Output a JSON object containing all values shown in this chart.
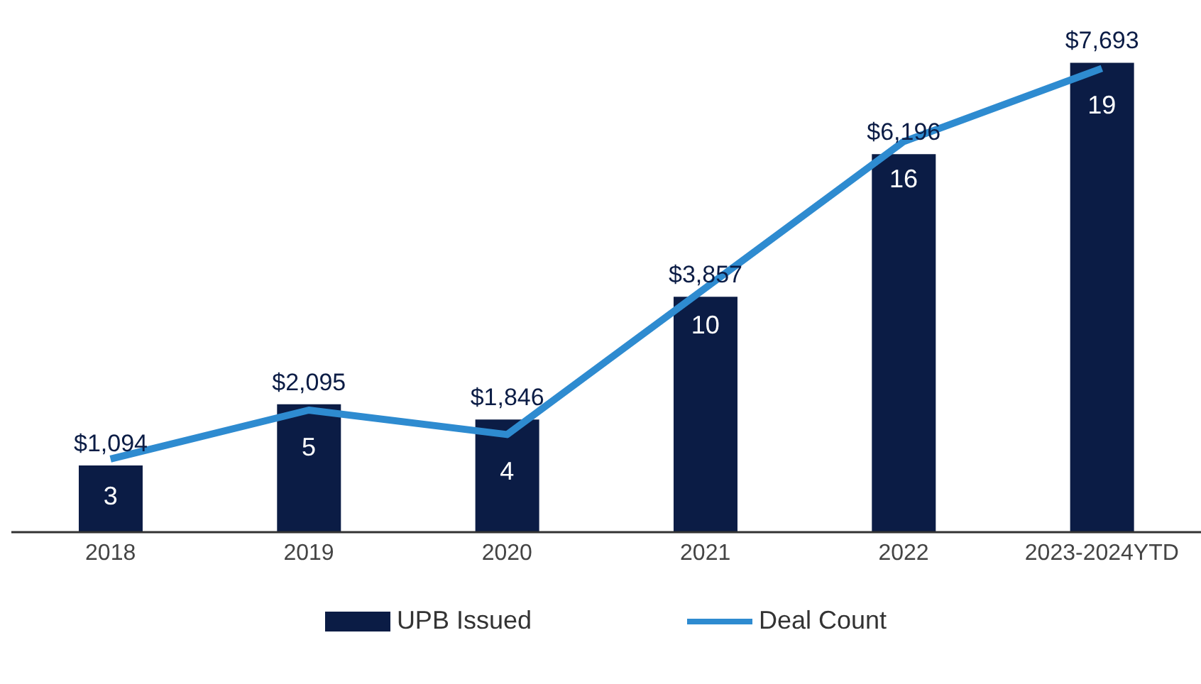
{
  "chart_data": {
    "type": "bar",
    "categories": [
      "2018",
      "2019",
      "2020",
      "2021",
      "2022",
      "2023-2024YTD"
    ],
    "series": [
      {
        "name": "UPB Issued",
        "color": "#0b1c45",
        "values": [
          1094,
          2095,
          1846,
          3857,
          6196,
          7693
        ],
        "value_labels": [
          "$1,094",
          "$2,095",
          "$1,846",
          "$3,857",
          "$6,196",
          "$7,693"
        ]
      },
      {
        "name": "Deal Count",
        "type": "line",
        "axis": "y2",
        "color": "#2e8bd0",
        "values": [
          3,
          5,
          4,
          10,
          16,
          19
        ],
        "value_labels": [
          "3",
          "5",
          "4",
          "10",
          "16",
          "19"
        ]
      }
    ],
    "tick_labels": "x",
    "legend": "bottom",
    "grid": false
  }
}
